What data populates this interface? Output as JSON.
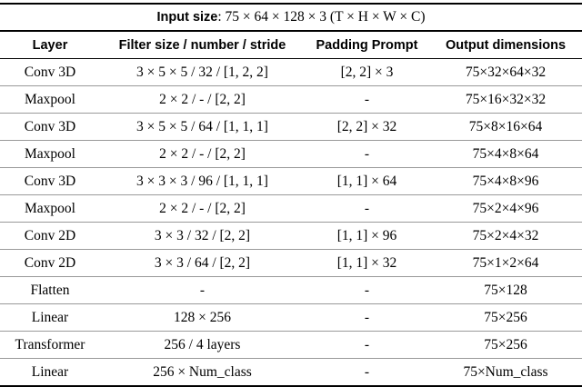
{
  "table": {
    "caption": {
      "label": "Input size",
      "text": ": 75 × 64 × 128 × 3 (T × H × W × C)"
    },
    "header": [
      "Layer",
      "Filter size / number / stride",
      "Padding Prompt",
      "Output dimensions"
    ],
    "rows": [
      [
        "Conv 3D",
        "3 × 5 × 5 / 32 / [1, 2, 2]",
        "[2, 2] × 3",
        "75×32×64×32"
      ],
      [
        "Maxpool",
        "2 × 2 / - / [2, 2]",
        "-",
        "75×16×32×32"
      ],
      [
        "Conv 3D",
        "3 × 5 × 5 / 64 / [1, 1, 1]",
        "[2, 2] × 32",
        "75×8×16×64"
      ],
      [
        "Maxpool",
        "2 × 2 / - / [2, 2]",
        "-",
        "75×4×8×64"
      ],
      [
        "Conv 3D",
        "3 × 3 × 3 / 96 / [1, 1, 1]",
        "[1, 1] × 64",
        "75×4×8×96"
      ],
      [
        "Maxpool",
        "2 × 2 / - / [2, 2]",
        "-",
        "75×2×4×96"
      ],
      [
        "Conv 2D",
        "3 × 3 / 32 / [2, 2]",
        "[1, 1] × 96",
        "75×2×4×32"
      ],
      [
        "Conv 2D",
        "3 × 3 / 64 / [2, 2]",
        "[1, 1] × 32",
        "75×1×2×64"
      ],
      [
        "Flatten",
        "-",
        "-",
        "75×128"
      ],
      [
        "Linear",
        "128 × 256",
        "-",
        "75×256"
      ],
      [
        "Transformer",
        "256 / 4 layers",
        "-",
        "75×256"
      ],
      [
        "Linear",
        "256 × Num_class",
        "-",
        "75×Num_class"
      ]
    ]
  }
}
